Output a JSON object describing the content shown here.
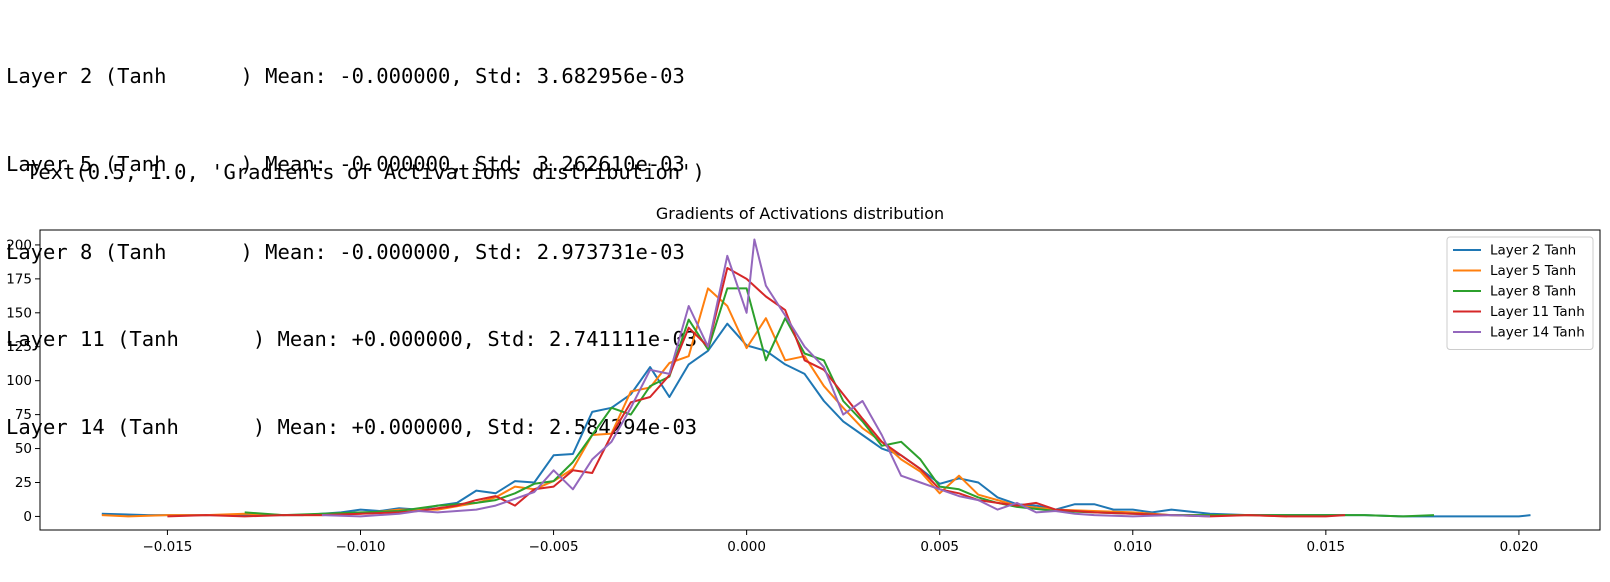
{
  "output": {
    "log_lines": [
      "Layer 2 (Tanh      ) Mean: -0.000000, Std: 3.682956e-03",
      "Layer 5 (Tanh      ) Mean: -0.000000, Std: 3.262610e-03",
      "Layer 8 (Tanh      ) Mean: -0.000000, Std: 2.973731e-03",
      "Layer 11 (Tanh      ) Mean: +0.000000, Std: 2.741111e-03",
      "Layer 14 (Tanh      ) Mean: +0.000000, Std: 2.584294e-03"
    ],
    "repr_line": "Text(0.5, 1.0, 'Gradients of Activations distribution')"
  },
  "chart_data": {
    "type": "line",
    "title": "Gradients of Activations distribution",
    "xlabel": "",
    "ylabel": "",
    "xlim": [
      -0.0183,
      0.0221
    ],
    "ylim": [
      -10,
      211
    ],
    "xticks": [
      -0.015,
      -0.01,
      -0.005,
      0.0,
      0.005,
      0.01,
      0.015,
      0.02
    ],
    "xtick_labels": [
      "−0.015",
      "−0.010",
      "−0.005",
      "0.000",
      "0.005",
      "0.010",
      "0.015",
      "0.020"
    ],
    "yticks": [
      0,
      25,
      50,
      75,
      100,
      125,
      150,
      175,
      200
    ],
    "ytick_labels": [
      "0",
      "25",
      "50",
      "75",
      "100",
      "125",
      "150",
      "175",
      "200"
    ],
    "grid": false,
    "legend_position": "upper right",
    "series": [
      {
        "name": "Layer 2 Tanh",
        "color": "#1f77b4",
        "x": [
          -0.0167,
          -0.0155,
          -0.0145,
          -0.0135,
          -0.0125,
          -0.0115,
          -0.0105,
          -0.01,
          -0.0095,
          -0.009,
          -0.0085,
          -0.008,
          -0.0075,
          -0.007,
          -0.0065,
          -0.006,
          -0.0055,
          -0.005,
          -0.0045,
          -0.004,
          -0.0035,
          -0.003,
          -0.0025,
          -0.002,
          -0.0015,
          -0.001,
          -0.0005,
          0.0,
          0.0005,
          0.001,
          0.0015,
          0.002,
          0.0025,
          0.003,
          0.0035,
          0.004,
          0.0045,
          0.005,
          0.0055,
          0.006,
          0.0065,
          0.007,
          0.0075,
          0.008,
          0.0085,
          0.009,
          0.0095,
          0.01,
          0.0105,
          0.011,
          0.012,
          0.013,
          0.014,
          0.015,
          0.016,
          0.017,
          0.018,
          0.019,
          0.02,
          0.0203
        ],
        "y": [
          2,
          1,
          1,
          1,
          1,
          1,
          3,
          5,
          4,
          6,
          5,
          8,
          10,
          19,
          17,
          26,
          25,
          45,
          46,
          77,
          80,
          90,
          110,
          88,
          112,
          122,
          142,
          126,
          122,
          112,
          105,
          85,
          70,
          60,
          50,
          45,
          35,
          24,
          28,
          25,
          14,
          9,
          8,
          5,
          9,
          9,
          5,
          5,
          3,
          5,
          2,
          1,
          1,
          1,
          1,
          0,
          0,
          0,
          0,
          1
        ]
      },
      {
        "name": "Layer 5 Tanh",
        "color": "#ff7f0e",
        "x": [
          -0.0167,
          -0.016,
          -0.015,
          -0.014,
          -0.013,
          -0.012,
          -0.011,
          -0.01,
          -0.009,
          -0.008,
          -0.007,
          -0.0065,
          -0.006,
          -0.0055,
          -0.005,
          -0.0045,
          -0.004,
          -0.0035,
          -0.003,
          -0.0025,
          -0.002,
          -0.0015,
          -0.001,
          -0.0005,
          0.0,
          0.0005,
          0.001,
          0.0015,
          0.002,
          0.0025,
          0.003,
          0.0035,
          0.004,
          0.0045,
          0.005,
          0.0055,
          0.006,
          0.0065,
          0.007,
          0.008,
          0.009,
          0.01,
          0.011,
          0.012,
          0.013,
          0.014
        ],
        "y": [
          1,
          0,
          1,
          1,
          2,
          1,
          1,
          2,
          5,
          5,
          10,
          14,
          22,
          20,
          26,
          35,
          60,
          61,
          92,
          95,
          113,
          118,
          168,
          155,
          124,
          146,
          115,
          118,
          96,
          80,
          65,
          55,
          42,
          33,
          17,
          30,
          16,
          12,
          8,
          5,
          4,
          3,
          1,
          1,
          1,
          0
        ]
      },
      {
        "name": "Layer 8 Tanh",
        "color": "#2ca02c",
        "x": [
          -0.013,
          -0.012,
          -0.011,
          -0.01,
          -0.009,
          -0.008,
          -0.007,
          -0.0065,
          -0.006,
          -0.0055,
          -0.005,
          -0.0045,
          -0.004,
          -0.0035,
          -0.003,
          -0.0025,
          -0.002,
          -0.0015,
          -0.001,
          -0.0005,
          0.0,
          0.0005,
          0.001,
          0.0015,
          0.002,
          0.0025,
          0.003,
          0.0035,
          0.004,
          0.0045,
          0.005,
          0.0055,
          0.006,
          0.0065,
          0.007,
          0.008,
          0.009,
          0.01,
          0.011,
          0.012,
          0.013,
          0.014,
          0.015,
          0.016,
          0.017,
          0.0178
        ],
        "y": [
          3,
          1,
          2,
          3,
          4,
          8,
          10,
          12,
          17,
          24,
          26,
          40,
          60,
          80,
          75,
          96,
          103,
          145,
          123,
          168,
          168,
          115,
          146,
          120,
          115,
          85,
          70,
          52,
          55,
          42,
          22,
          20,
          14,
          10,
          7,
          4,
          3,
          2,
          1,
          1,
          1,
          1,
          1,
          1,
          0,
          1
        ]
      },
      {
        "name": "Layer 11 Tanh",
        "color": "#d62728",
        "x": [
          -0.015,
          -0.014,
          -0.013,
          -0.012,
          -0.011,
          -0.01,
          -0.009,
          -0.0085,
          -0.008,
          -0.0075,
          -0.007,
          -0.0065,
          -0.006,
          -0.0055,
          -0.005,
          -0.0045,
          -0.004,
          -0.0035,
          -0.003,
          -0.0025,
          -0.002,
          -0.0015,
          -0.001,
          -0.0005,
          0.0,
          0.0005,
          0.001,
          0.0015,
          0.002,
          0.0025,
          0.003,
          0.0035,
          0.004,
          0.0045,
          0.005,
          0.0055,
          0.006,
          0.0065,
          0.007,
          0.0075,
          0.008,
          0.009,
          0.01,
          0.011,
          0.012,
          0.013,
          0.014,
          0.015,
          0.0155
        ],
        "y": [
          0,
          1,
          0,
          1,
          1,
          2,
          3,
          4,
          6,
          8,
          12,
          15,
          8,
          20,
          22,
          34,
          32,
          60,
          84,
          88,
          104,
          139,
          125,
          183,
          175,
          162,
          152,
          115,
          108,
          90,
          72,
          55,
          45,
          35,
          20,
          17,
          12,
          10,
          8,
          10,
          5,
          3,
          2,
          1,
          0,
          1,
          0,
          0,
          1
        ]
      },
      {
        "name": "Layer 14 Tanh",
        "color": "#9467bd",
        "x": [
          -0.011,
          -0.01,
          -0.009,
          -0.0085,
          -0.008,
          -0.0075,
          -0.007,
          -0.0065,
          -0.006,
          -0.0055,
          -0.005,
          -0.0045,
          -0.004,
          -0.0035,
          -0.003,
          -0.0025,
          -0.002,
          -0.0015,
          -0.001,
          -0.0005,
          0.0,
          0.0002,
          0.0005,
          0.001,
          0.0015,
          0.002,
          0.0025,
          0.003,
          0.0035,
          0.004,
          0.0045,
          0.005,
          0.0055,
          0.006,
          0.0065,
          0.007,
          0.0075,
          0.008,
          0.0085,
          0.009,
          0.01,
          0.011,
          0.012
        ],
        "y": [
          1,
          0,
          2,
          4,
          3,
          4,
          5,
          8,
          13,
          18,
          34,
          20,
          42,
          55,
          80,
          108,
          105,
          155,
          125,
          192,
          150,
          204,
          170,
          148,
          125,
          110,
          75,
          85,
          60,
          30,
          25,
          20,
          15,
          12,
          5,
          10,
          3,
          4,
          2,
          1,
          0,
          1,
          0
        ]
      }
    ]
  }
}
